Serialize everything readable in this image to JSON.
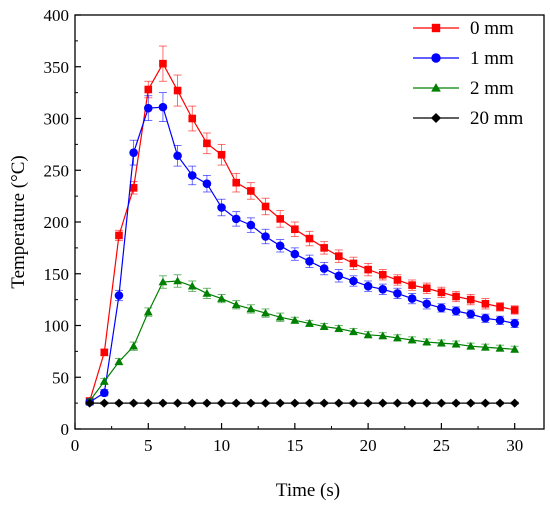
{
  "chart_data": {
    "type": "line",
    "xlabel": "Time (s)",
    "ylabel": "Temperature (°C)",
    "xlim": [
      0,
      32
    ],
    "ylim": [
      0,
      400
    ],
    "xticks": [
      0,
      5,
      10,
      15,
      20,
      25,
      30
    ],
    "yticks": [
      0,
      50,
      100,
      150,
      200,
      250,
      300,
      350,
      400
    ],
    "grid": false,
    "legend_position": "top-right",
    "x": [
      1,
      2,
      3,
      4,
      5,
      6,
      7,
      8,
      9,
      10,
      11,
      12,
      13,
      14,
      15,
      16,
      17,
      18,
      19,
      20,
      21,
      22,
      23,
      24,
      25,
      26,
      27,
      28,
      29,
      30
    ],
    "series": [
      {
        "name": "0 mm",
        "color": "#ff0000",
        "marker": "square",
        "values": [
          27,
          74,
          187,
          233,
          328,
          353,
          327,
          300,
          276,
          265,
          238,
          230,
          215,
          203,
          193,
          184,
          175,
          167,
          160,
          154,
          149,
          144,
          139,
          136,
          132,
          128,
          125,
          121,
          118,
          115
        ],
        "errors": [
          3,
          3,
          5,
          6,
          8,
          17,
          15,
          12,
          10,
          10,
          9,
          8,
          8,
          8,
          7,
          7,
          6,
          6,
          6,
          6,
          5,
          5,
          5,
          5,
          5,
          5,
          5,
          5,
          4,
          4
        ]
      },
      {
        "name": "1 mm",
        "color": "#0000ff",
        "marker": "circle",
        "values": [
          26,
          35,
          129,
          267,
          310,
          311,
          264,
          245,
          237,
          214,
          203,
          197,
          186,
          177,
          169,
          162,
          155,
          148,
          143,
          138,
          135,
          131,
          126,
          121,
          117,
          114,
          111,
          107,
          105,
          102
        ],
        "errors": [
          3,
          3,
          5,
          12,
          12,
          14,
          10,
          9,
          8,
          8,
          7,
          7,
          7,
          6,
          6,
          6,
          6,
          6,
          5,
          5,
          5,
          5,
          5,
          5,
          4,
          4,
          4,
          4,
          4,
          4
        ]
      },
      {
        "name": "2 mm",
        "color": "#008000",
        "marker": "triangle",
        "values": [
          27,
          46,
          65,
          80,
          113,
          142,
          143,
          138,
          131,
          126,
          120,
          116,
          112,
          108,
          105,
          102,
          99,
          97,
          94,
          91,
          90,
          88,
          86,
          84,
          83,
          82,
          80,
          79,
          78,
          77
        ],
        "errors": [
          2,
          3,
          3,
          4,
          4,
          6,
          6,
          5,
          5,
          4,
          4,
          4,
          4,
          4,
          3,
          3,
          3,
          3,
          3,
          3,
          3,
          3,
          3,
          3,
          3,
          3,
          3,
          3,
          3,
          3
        ]
      },
      {
        "name": "20 mm",
        "color": "#000000",
        "marker": "diamond",
        "values": [
          25,
          25,
          25,
          25,
          25,
          25,
          25,
          25,
          25,
          25,
          25,
          25,
          25,
          25,
          25,
          25,
          25,
          25,
          25,
          25,
          25,
          25,
          25,
          25,
          25,
          25,
          25,
          25,
          25,
          25
        ],
        "errors": [
          1,
          1,
          1,
          1,
          1,
          1,
          1,
          1,
          1,
          1,
          1,
          1,
          1,
          1,
          1,
          1,
          1,
          1,
          1,
          1,
          1,
          1,
          1,
          1,
          1,
          1,
          1,
          1,
          1,
          1
        ]
      }
    ]
  }
}
